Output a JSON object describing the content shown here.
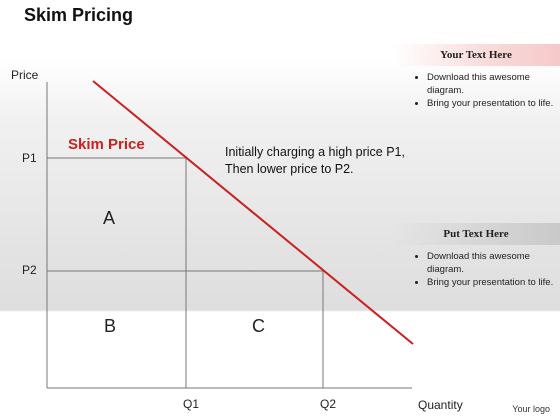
{
  "slide": {
    "title": "Skim Pricing",
    "logo_text": "Your logo"
  },
  "diagram": {
    "y_axis_label": "Price",
    "x_axis_label": "Quantity",
    "y_ticks": [
      "P1",
      "P2"
    ],
    "x_ticks": [
      "Q1",
      "Q2"
    ],
    "regions": [
      "A",
      "B",
      "C"
    ],
    "curve_label": "Skim Price",
    "annotation": [
      "Initially charging a high price P1,",
      "Then lower price to P2."
    ],
    "curve_color": "#cc1f1f"
  },
  "panels": [
    {
      "header": "Your Text Here",
      "items": [
        "Download this awesome diagram.",
        "Bring your presentation to life."
      ]
    },
    {
      "header": "Put Text Here",
      "items": [
        "Download this awesome diagram.",
        "Bring your presentation to life."
      ]
    }
  ]
}
